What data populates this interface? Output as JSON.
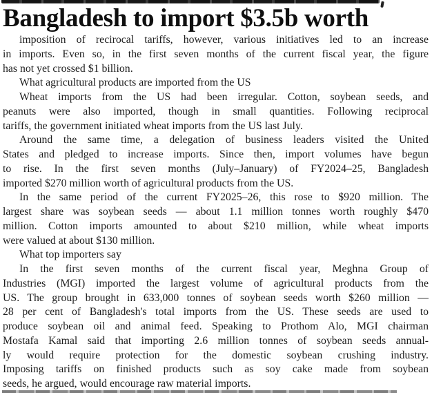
{
  "page": {
    "background_color": "#ffffff",
    "text_color": "#1d1d1d",
    "headline_color": "#0f0f0f"
  },
  "artifacts": {
    "top_strip": "cropped-previous-line-fragment",
    "bottom_strip": "cropped-next-line-fragment"
  },
  "article": {
    "headline": "Bangladesh to import $3.5b worth",
    "blocks": [
      {
        "type": "paragraph",
        "lines": [
          "imposition of recirocal tariffs, however, various initiatives led to an increase",
          "in imports. Even so, in the first seven months of the current fiscal year, the figure",
          "has not yet crossed $1 billion."
        ]
      },
      {
        "type": "subhead",
        "lines": [
          "What agricultural products are imported from the US"
        ]
      },
      {
        "type": "paragraph",
        "lines": [
          "Wheat imports from the US had been irregular. Cotton, soybean seeds, and",
          "peanuts were also imported, though in small quantities. Following reciprocal",
          "tariffs, the government initiated wheat imports from the US last July."
        ]
      },
      {
        "type": "paragraph",
        "lines": [
          "Around the same time, a delegation of business leaders visited the United",
          "States and pledged to increase imports. Since then, import volumes have begun",
          "to rise. In the first seven months (July–January) of FY2024–25, Bangladesh",
          "imported $270 million worth of agricultural products from the US."
        ]
      },
      {
        "type": "paragraph",
        "lines": [
          "In the same period of the current FY2025–26, this rose to $920 million. The",
          "largest share was soybean seeds — about 1.1 million tonnes worth roughly $470",
          "million. Cotton imports amounted to about $210 million, while wheat imports",
          "were valued at about $130 million."
        ]
      },
      {
        "type": "subhead",
        "lines": [
          "What top importers say"
        ]
      },
      {
        "type": "paragraph",
        "lines": [
          "In the first seven months of the current fiscal year, Meghna Group of",
          "Industries (MGI) imported the largest volume of agricultural products from the",
          "US. The group brought in 633,000 tonnes of soybean seeds worth $260 million —",
          "28 per cent of Bangladesh's total imports from the US. These seeds are used to",
          "produce soybean oil and animal feed. Speaking to Prothom Alo, MGI chairman",
          "Mostafa Kamal said that importing 2.6 million tonnes of soybean seeds annual-",
          "ly would require protection for the domestic soybean crushing industry.",
          "Imposing tariffs on finished products such as soy cake made from soybean",
          "seeds, he argued, would encourage raw material imports."
        ]
      }
    ]
  }
}
